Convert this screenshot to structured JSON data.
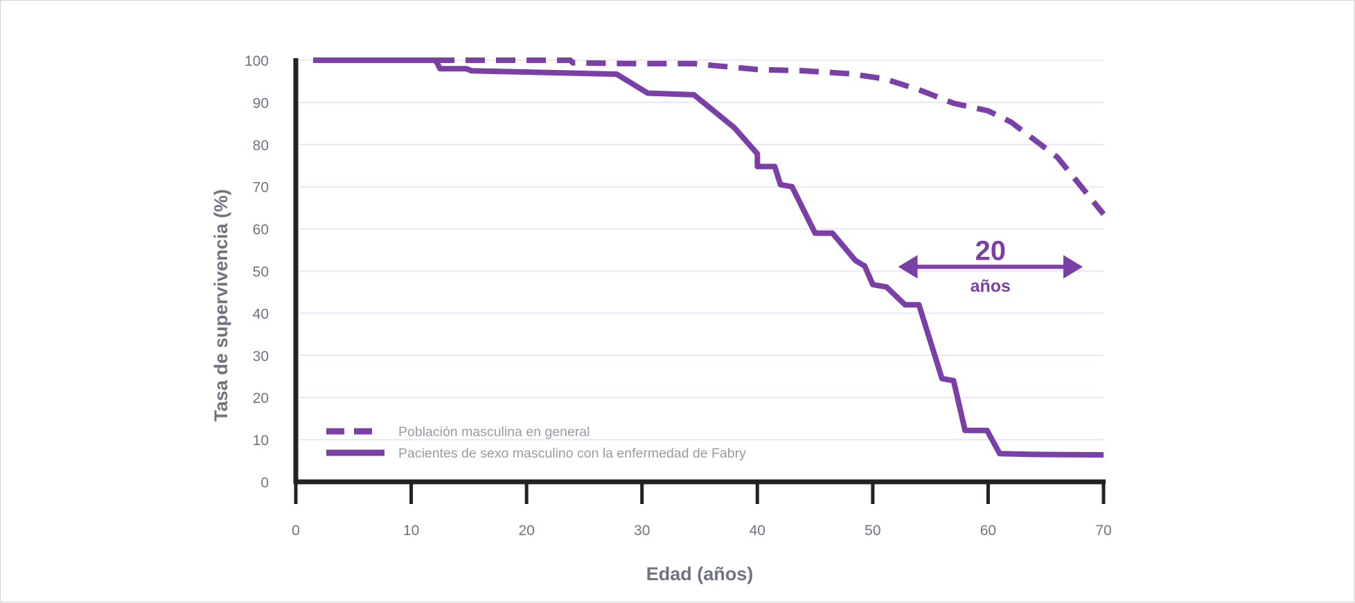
{
  "chart_data": {
    "type": "line",
    "title": "",
    "xlabel": "Edad (años)",
    "ylabel": "Tasa de supervivencia (%)",
    "xlim": [
      0,
      70
    ],
    "ylim": [
      0,
      100
    ],
    "x_ticks": [
      0,
      10,
      20,
      30,
      40,
      50,
      60,
      70
    ],
    "y_ticks": [
      0,
      10,
      20,
      30,
      40,
      50,
      60,
      70,
      80,
      90,
      100
    ],
    "grid": "horizontal",
    "legend_position": "bottom-left",
    "colors": {
      "line": "#7b3fa8",
      "axis": "#222222",
      "grid": "#ece4f3",
      "text": "#6e7480",
      "legend_text": "#9a9aa6"
    },
    "series": [
      {
        "name": "Población masculina en general",
        "style": "dashed",
        "x": [
          1.5,
          12,
          23.8,
          24,
          29,
          34.5,
          36,
          40,
          44,
          48,
          51,
          54,
          57,
          60,
          62,
          66,
          70
        ],
        "y": [
          100,
          100,
          100,
          99.4,
          99.2,
          99.2,
          98.8,
          97.8,
          97.5,
          96.8,
          95.6,
          93,
          89.8,
          88,
          85.3,
          77,
          63.5
        ]
      },
      {
        "name": "Pacientes de sexo masculino con la enfermedad de Fabry",
        "style": "solid",
        "x": [
          1.5,
          12,
          12.2,
          12.5,
          14.8,
          15.2,
          27.8,
          30.5,
          34.5,
          38,
          40,
          40,
          41.5,
          42,
          43,
          45,
          46.5,
          48.5,
          49.3,
          50,
          51.2,
          52.8,
          54,
          56,
          57,
          58,
          59.9,
          61,
          64,
          70
        ],
        "y": [
          100,
          100,
          99.6,
          98,
          98,
          97.5,
          96.7,
          92.2,
          91.8,
          84,
          77.8,
          74.8,
          74.8,
          70.5,
          70,
          59,
          59,
          52.5,
          51.2,
          46.8,
          46.2,
          42,
          42,
          24.5,
          24,
          12.2,
          12.2,
          6.7,
          6.5,
          6.4
        ]
      }
    ],
    "annotations": [
      {
        "text": "20",
        "subtext": "años",
        "x_from": 52.2,
        "x_to": 68.2,
        "y": 51,
        "style": "double-arrow"
      }
    ]
  }
}
